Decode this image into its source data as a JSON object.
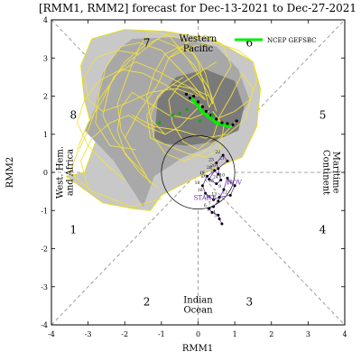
{
  "chart_data": {
    "type": "scatter",
    "title": "[RMM1, RMM2] forecast for Dec-13-2021 to Dec-27-2021",
    "xlabel": "RMM1",
    "ylabel": "RMM2",
    "xlim": [
      -4,
      4
    ],
    "ylim": [
      -4,
      4
    ],
    "x_ticks": [
      -4,
      -3,
      -2,
      -1,
      0,
      1,
      2,
      3,
      4
    ],
    "y_ticks": [
      -4,
      -3,
      -2,
      -1,
      0,
      1,
      2,
      3,
      4
    ],
    "phase_labels": [
      {
        "text": "1",
        "x": -3.4,
        "y": -1.5
      },
      {
        "text": "2",
        "x": -1.4,
        "y": -3.4
      },
      {
        "text": "3",
        "x": 1.4,
        "y": -3.4
      },
      {
        "text": "4",
        "x": 3.4,
        "y": -1.5
      },
      {
        "text": "5",
        "x": 3.4,
        "y": 1.5
      },
      {
        "text": "6",
        "x": 1.4,
        "y": 3.4
      },
      {
        "text": "7",
        "x": -1.4,
        "y": 3.4
      },
      {
        "text": "8",
        "x": -3.4,
        "y": 1.5
      }
    ],
    "region_labels": [
      {
        "lines": [
          "Western",
          "Pacific"
        ],
        "x": 0.0,
        "y": 3.4
      },
      {
        "lines": [
          "Indian",
          "Ocean"
        ],
        "x": 0.0,
        "y": -3.45
      },
      {
        "lines": [
          "West. Hem.",
          "and Africa"
        ],
        "x": -3.65,
        "y": 0.0,
        "rotate": -90
      },
      {
        "lines": [
          "Maritime",
          "Continent"
        ],
        "x": 3.65,
        "y": 0.0,
        "rotate": 90
      }
    ],
    "legend": {
      "label": "NCEP GEFSBC",
      "color": "#00ee00",
      "position": "top-right"
    },
    "annotations": [
      {
        "text": "NOV",
        "x": 0.78,
        "y": -0.32,
        "color": "#6a2db0"
      },
      {
        "text": "START",
        "x": -0.12,
        "y": -0.72,
        "color": "#6a2db0"
      }
    ],
    "obs_dates": [
      "29",
      "28",
      "26",
      "25",
      "24",
      "23",
      "22",
      "21",
      "20",
      "19",
      "18",
      "16",
      "14",
      "13",
      "12",
      "11",
      "10",
      "9",
      "8",
      "7",
      "6",
      "5",
      "4",
      "3"
    ],
    "observed_path": {
      "x": [
        0.55,
        0.45,
        0.3,
        0.5,
        0.62,
        0.5,
        0.68,
        0.8,
        0.55,
        0.25,
        0.12,
        0.2,
        0.42,
        0.58,
        0.88,
        1.0,
        0.8,
        0.7,
        0.55,
        0.42,
        0.3,
        0.38,
        0.55,
        0.58,
        0.65
      ],
      "y": [
        -0.05,
        0.05,
        -0.18,
        -0.3,
        -0.2,
        0.25,
        0.45,
        0.3,
        0.1,
        -0.1,
        -0.35,
        -0.55,
        -0.72,
        -0.65,
        -0.6,
        -0.35,
        -0.15,
        -0.45,
        -0.75,
        -0.9,
        -0.95,
        -1.05,
        -1.12,
        -1.22,
        -1.35
      ],
      "color": "#000000"
    },
    "ensemble_mean": {
      "name": "NCEP GEFSBC",
      "x": [
        -0.2,
        -0.05,
        0.1,
        0.3,
        0.5,
        0.7,
        0.85
      ],
      "y": [
        1.95,
        1.8,
        1.6,
        1.45,
        1.3,
        1.25,
        1.2
      ],
      "color": "#00ee00"
    },
    "mean_dots": {
      "x": [
        -0.32,
        -0.22,
        -0.12,
        0.0,
        0.12,
        0.22,
        0.35,
        0.5,
        0.65,
        0.8,
        0.95,
        1.05
      ],
      "y": [
        2.05,
        1.95,
        2.0,
        1.85,
        1.72,
        1.6,
        1.5,
        1.4,
        1.3,
        1.28,
        1.25,
        1.35
      ],
      "color": "#000000"
    },
    "green_dots": {
      "x": [
        -1.05,
        -0.7,
        -0.5,
        -0.3,
        0.05,
        0.4
      ],
      "y": [
        1.3,
        1.5,
        1.55,
        1.65,
        1.35,
        1.5
      ],
      "color": "#1aa31a"
    },
    "spread_90": {
      "x": [
        -3.6,
        -3.1,
        -2.8,
        -3.1,
        -3.2,
        -2.9,
        -2.0,
        -0.9,
        0.4,
        1.5,
        1.7,
        1.6,
        1.2,
        0.8,
        -0.2,
        -1.0,
        -1.3,
        -1.8,
        -2.6
      ],
      "y": [
        -0.1,
        0.0,
        0.8,
        1.9,
        2.8,
        3.5,
        3.75,
        3.7,
        3.5,
        2.9,
        2.2,
        1.2,
        0.4,
        0.25,
        -0.2,
        -0.6,
        -1.0,
        -0.95,
        -0.8
      ],
      "color": "#c8c8c8"
    },
    "spread_50": {
      "x": [
        -3.1,
        -2.8,
        -2.6,
        -2.2,
        -1.8,
        -0.6,
        0.5,
        1.1,
        1.4,
        1.0,
        0.4,
        -0.4,
        -1.2,
        -1.5,
        -2.3
      ],
      "y": [
        1.1,
        1.7,
        2.6,
        3.2,
        3.5,
        3.55,
        3.3,
        2.7,
        1.9,
        1.2,
        0.7,
        0.4,
        -0.1,
        -0.9,
        0.3
      ],
      "color": "#a8a8a8"
    },
    "spread_inner": {
      "x": [
        -1.2,
        -1.1,
        -0.6,
        0.2,
        1.0,
        1.25,
        1.1,
        0.4,
        -0.3,
        -0.9
      ],
      "y": [
        0.9,
        1.9,
        2.5,
        2.7,
        2.4,
        1.7,
        1.1,
        0.8,
        0.7,
        0.75
      ],
      "color": "#7a7a7a"
    },
    "members_color": "#f0e040",
    "members": [
      {
        "x": [
          0.3,
          -0.6,
          -1.2,
          -1.7,
          -2.2,
          -2.7,
          -3.0,
          -3.3,
          -3.5,
          -2.9,
          -1.8,
          -1.0
        ],
        "y": [
          2.0,
          2.4,
          2.7,
          2.9,
          2.6,
          1.9,
          1.1,
          0.5,
          0.0,
          -0.5,
          -0.9,
          -0.7
        ]
      },
      {
        "x": [
          0.2,
          -0.4,
          -1.0,
          -1.6,
          -2.1,
          -2.5,
          -2.7,
          -2.8,
          -2.4,
          -1.7
        ],
        "y": [
          1.9,
          2.6,
          3.2,
          3.4,
          3.3,
          2.8,
          2.1,
          1.3,
          0.7,
          0.6
        ]
      },
      {
        "x": [
          0.4,
          0.1,
          -0.3,
          -0.8,
          -1.3,
          -1.6,
          -1.9,
          -2.2,
          -2.1,
          -1.7,
          -1.3
        ],
        "y": [
          1.8,
          2.4,
          3.0,
          3.6,
          3.7,
          3.3,
          2.6,
          1.8,
          1.1,
          0.4,
          -0.3
        ]
      },
      {
        "x": [
          0.5,
          0.3,
          -0.1,
          -0.6,
          -1.1,
          -1.5,
          -1.9,
          -2.3,
          -2.6,
          -3.0,
          -3.3
        ],
        "y": [
          1.6,
          2.2,
          2.8,
          3.3,
          3.5,
          3.2,
          2.9,
          2.5,
          1.9,
          1.3,
          0.6
        ]
      },
      {
        "x": [
          0.6,
          0.9,
          1.2,
          1.5,
          1.3,
          0.8,
          0.2,
          -0.5,
          -1.2,
          -1.8
        ],
        "y": [
          1.5,
          2.0,
          2.6,
          2.2,
          1.4,
          1.0,
          0.9,
          1.1,
          1.2,
          1.5
        ]
      },
      {
        "x": [
          0.3,
          0.6,
          0.9,
          0.7,
          0.2,
          -0.3,
          -0.8,
          -1.1,
          -1.6,
          -2.0
        ],
        "y": [
          1.7,
          2.3,
          2.8,
          3.3,
          3.6,
          3.4,
          3.0,
          2.3,
          1.6,
          0.9
        ]
      },
      {
        "x": [
          0.1,
          -0.2,
          -0.5,
          -0.9,
          -1.4,
          -1.9,
          -2.4,
          -2.9,
          -3.2,
          -3.0
        ],
        "y": [
          1.8,
          1.5,
          1.2,
          1.0,
          1.2,
          1.5,
          1.3,
          0.9,
          0.3,
          -0.4
        ]
      },
      {
        "x": [
          0.4,
          0.7,
          0.6,
          0.2,
          -0.3,
          -0.8,
          -1.3,
          -1.4,
          -1.0,
          -0.4
        ],
        "y": [
          1.6,
          1.2,
          0.6,
          0.4,
          0.5,
          0.7,
          0.9,
          1.5,
          2.1,
          2.5
        ]
      },
      {
        "x": [
          0.2,
          -0.2,
          -0.7,
          -1.1,
          -1.3,
          -1.2,
          -0.9,
          -0.4,
          0.1,
          0.6,
          1.0
        ],
        "y": [
          1.9,
          2.2,
          2.3,
          2.0,
          1.5,
          0.9,
          0.5,
          0.3,
          0.5,
          0.9,
          1.3
        ]
      },
      {
        "x": [
          0.5,
          1.0,
          1.4,
          1.6,
          1.5,
          1.1,
          0.5,
          -0.2,
          -0.8
        ],
        "y": [
          1.4,
          1.6,
          1.9,
          2.4,
          2.9,
          3.2,
          3.4,
          3.3,
          3.0
        ]
      },
      {
        "x": [
          0.0,
          -0.6,
          -1.3,
          -2.0,
          -2.6,
          -3.0,
          -3.1,
          -2.8,
          -2.2,
          -1.6
        ],
        "y": [
          2.0,
          2.2,
          2.1,
          1.8,
          1.6,
          1.9,
          2.5,
          3.0,
          3.2,
          3.1
        ]
      },
      {
        "x": [
          0.3,
          0.0,
          -0.4,
          -0.9,
          -1.5,
          -2.0,
          -2.4,
          -2.6,
          -2.3,
          -1.9,
          -1.4
        ],
        "y": [
          1.7,
          2.9,
          3.5,
          3.6,
          3.3,
          2.9,
          2.3,
          1.5,
          0.9,
          0.4,
          -0.1
        ]
      },
      {
        "x": [
          0.6,
          0.4,
          0.0,
          -0.4,
          -0.7,
          -0.8,
          -0.5,
          0.0,
          0.5
        ],
        "y": [
          1.5,
          0.9,
          0.6,
          0.8,
          1.3,
          1.9,
          2.3,
          2.6,
          2.9
        ]
      },
      {
        "x": [
          0.1,
          -0.3,
          -0.9,
          -1.5,
          -2.1,
          -2.7,
          -3.1,
          -3.3,
          -3.0,
          -2.5,
          -2.0
        ],
        "y": [
          1.7,
          1.9,
          2.3,
          2.6,
          2.7,
          2.4,
          1.9,
          1.3,
          0.7,
          0.2,
          -0.2
        ]
      },
      {
        "x": [
          0.4,
          0.2,
          -0.1,
          -0.5,
          -0.9,
          -1.2,
          -1.4,
          -1.3,
          -0.9
        ],
        "y": [
          1.8,
          2.6,
          3.1,
          3.3,
          3.1,
          2.6,
          2.0,
          1.4,
          1.0
        ]
      },
      {
        "x": [
          0.3,
          -0.2,
          -0.8,
          -1.3,
          -1.8,
          -2.1,
          -2.2,
          -2.0,
          -1.6,
          -1.1
        ],
        "y": [
          1.6,
          1.4,
          1.5,
          1.8,
          2.1,
          1.7,
          1.1,
          0.5,
          0.0,
          -0.4
        ]
      }
    ]
  }
}
